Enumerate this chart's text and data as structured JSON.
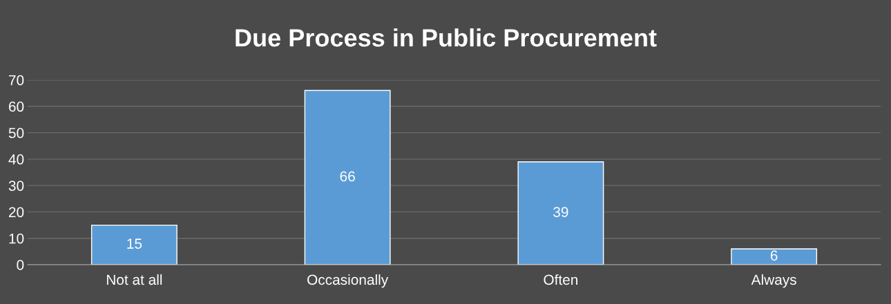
{
  "chart_data": {
    "type": "bar",
    "title": "Due Process in Public Procurement",
    "categories": [
      "Not at all",
      "Occasionally",
      "Often",
      "Always"
    ],
    "values": [
      15,
      66,
      39,
      6
    ],
    "color": "#5b9bd5",
    "ylim": [
      0,
      70
    ],
    "yticks": [
      0,
      10,
      20,
      30,
      40,
      50,
      60,
      70
    ],
    "grid": "y",
    "data_labels": true
  }
}
